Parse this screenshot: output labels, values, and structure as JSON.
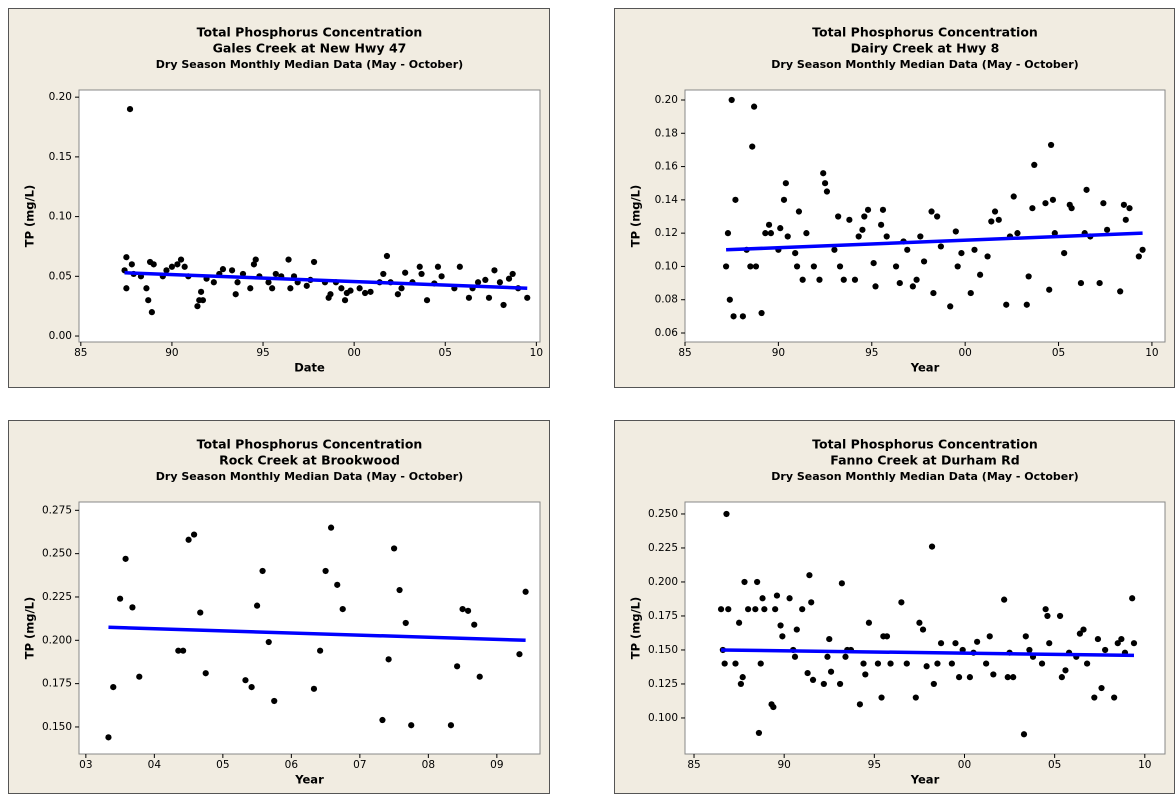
{
  "chart_data": [
    {
      "type": "scatter",
      "title": "Total Phosphorus Concentration",
      "subtitle": "Gales Creek at New Hwy 47",
      "caption": "Dry Season Monthly Median Data (May - October)",
      "x_label": "Date",
      "y_label": "TP (mg/L)",
      "xlim": [
        1984.9,
        2010.2
      ],
      "ylim": [
        -0.005,
        0.206
      ],
      "xticks": [
        {
          "value": 1985,
          "label": "85"
        },
        {
          "value": 1990,
          "label": "90"
        },
        {
          "value": 1995,
          "label": "95"
        },
        {
          "value": 2000,
          "label": "00"
        },
        {
          "value": 2005,
          "label": "05"
        },
        {
          "value": 2010,
          "label": "10"
        }
      ],
      "yticks": [
        {
          "value": 0,
          "label": "0.00"
        },
        0.05,
        {
          "value": 0.1,
          "label": "0.10"
        },
        0.15,
        {
          "value": 0.2,
          "label": "0.20"
        }
      ],
      "series": [
        {
          "color": "#000000",
          "x": [
            1987.4,
            1987.5,
            1987.5,
            1987.7,
            1987.8,
            1987.9,
            1988.3,
            1988.6,
            1988.7,
            1988.8,
            1988.9,
            1989.0,
            1989.5,
            1989.7,
            1990.0,
            1990.3,
            1990.5,
            1990.7,
            1990.9,
            1991.4,
            1991.5,
            1991.6,
            1991.7,
            1991.9,
            1992.3,
            1992.6,
            1992.8,
            1993.3,
            1993.5,
            1993.6,
            1993.9,
            1994.3,
            1994.5,
            1994.6,
            1994.8,
            1995.3,
            1995.5,
            1995.7,
            1996.0,
            1996.4,
            1996.5,
            1996.7,
            1996.9,
            1997.4,
            1997.6,
            1997.8,
            1998.4,
            1998.6,
            1998.7,
            1999.0,
            1999.3,
            1999.5,
            1999.6,
            1999.8,
            2000.3,
            2000.6,
            2000.9,
            2001.4,
            2001.6,
            2001.8,
            2002.0,
            2002.4,
            2002.6,
            2002.8,
            2003.2,
            2003.6,
            2003.7,
            2004.0,
            2004.4,
            2004.6,
            2004.8,
            2005.5,
            2005.8,
            2006.3,
            2006.5,
            2006.8,
            2007.2,
            2007.4,
            2007.7,
            2008.0,
            2008.2,
            2008.5,
            2008.7,
            2009.0,
            2009.5
          ],
          "values": [
            0.055,
            0.066,
            0.04,
            0.19,
            0.06,
            0.052,
            0.05,
            0.04,
            0.03,
            0.062,
            0.02,
            0.06,
            0.05,
            0.055,
            0.058,
            0.06,
            0.064,
            0.058,
            0.05,
            0.025,
            0.03,
            0.037,
            0.03,
            0.048,
            0.045,
            0.052,
            0.056,
            0.055,
            0.035,
            0.045,
            0.052,
            0.04,
            0.06,
            0.064,
            0.05,
            0.045,
            0.04,
            0.052,
            0.05,
            0.064,
            0.04,
            0.05,
            0.045,
            0.042,
            0.047,
            0.062,
            0.045,
            0.032,
            0.035,
            0.045,
            0.04,
            0.03,
            0.036,
            0.038,
            0.04,
            0.036,
            0.037,
            0.045,
            0.052,
            0.067,
            0.045,
            0.035,
            0.04,
            0.053,
            0.045,
            0.058,
            0.052,
            0.03,
            0.044,
            0.058,
            0.05,
            0.04,
            0.058,
            0.032,
            0.04,
            0.045,
            0.047,
            0.032,
            0.055,
            0.045,
            0.026,
            0.048,
            0.052,
            0.04,
            0.032
          ]
        }
      ],
      "trend_line": {
        "color": "#0000ff",
        "x": [
          1987.4,
          2009.5
        ],
        "values": [
          0.053,
          0.04
        ]
      }
    },
    {
      "type": "scatter",
      "title": "Total Phosphorus Concentration",
      "subtitle": "Dairy Creek at Hwy 8",
      "caption": "Dry Season Monthly Median Data (May - October)",
      "x_label": "Year",
      "y_label": "TP (mg/L)",
      "xlim": [
        1985,
        2010.7
      ],
      "ylim": [
        0.0546,
        0.206
      ],
      "xticks": [
        {
          "value": 1985,
          "label": "85"
        },
        {
          "value": 1990,
          "label": "90"
        },
        {
          "value": 1995,
          "label": "95"
        },
        {
          "value": 2000,
          "label": "00"
        },
        {
          "value": 2005,
          "label": "05"
        },
        {
          "value": 2010,
          "label": "10"
        }
      ],
      "yticks": [
        0.06,
        0.08,
        {
          "value": 0.1,
          "label": "0.10"
        },
        0.12,
        0.14,
        0.16,
        0.18,
        {
          "value": 0.2,
          "label": "0.20"
        }
      ],
      "series": [
        {
          "color": "#000000",
          "x": [
            1987.2,
            1987.3,
            1987.4,
            1987.5,
            1987.6,
            1987.7,
            1988.1,
            1988.3,
            1988.5,
            1988.6,
            1988.7,
            1988.8,
            1989.1,
            1989.3,
            1989.5,
            1989.6,
            1990.0,
            1990.1,
            1990.3,
            1990.4,
            1990.5,
            1990.9,
            1991.0,
            1991.1,
            1991.3,
            1991.5,
            1991.9,
            1992.2,
            1992.4,
            1992.5,
            1992.6,
            1993.0,
            1993.2,
            1993.3,
            1993.5,
            1993.8,
            1994.1,
            1994.3,
            1994.5,
            1994.6,
            1994.8,
            1995.1,
            1995.2,
            1995.5,
            1995.6,
            1995.8,
            1996.3,
            1996.5,
            1996.7,
            1996.9,
            1997.2,
            1997.4,
            1997.6,
            1997.8,
            1998.2,
            1998.3,
            1998.5,
            1998.7,
            1999.2,
            1999.5,
            1999.6,
            1999.8,
            2000.3,
            2000.5,
            2000.8,
            2001.2,
            2001.4,
            2001.6,
            2001.8,
            2002.2,
            2002.4,
            2002.6,
            2002.8,
            2003.3,
            2003.4,
            2003.6,
            2003.7,
            2004.3,
            2004.5,
            2004.6,
            2004.7,
            2004.8,
            2005.3,
            2005.6,
            2005.7,
            2006.2,
            2006.4,
            2006.5,
            2006.7,
            2007.2,
            2007.4,
            2007.6,
            2008.3,
            2008.5,
            2008.6,
            2008.8,
            2009.3,
            2009.5
          ],
          "values": [
            0.1,
            0.12,
            0.08,
            0.2,
            0.07,
            0.14,
            0.07,
            0.11,
            0.1,
            0.172,
            0.196,
            0.1,
            0.072,
            0.12,
            0.125,
            0.12,
            0.11,
            0.123,
            0.14,
            0.15,
            0.118,
            0.108,
            0.1,
            0.133,
            0.092,
            0.12,
            0.1,
            0.092,
            0.156,
            0.15,
            0.145,
            0.11,
            0.13,
            0.1,
            0.092,
            0.128,
            0.092,
            0.118,
            0.122,
            0.13,
            0.134,
            0.102,
            0.088,
            0.125,
            0.134,
            0.118,
            0.1,
            0.09,
            0.115,
            0.11,
            0.088,
            0.092,
            0.118,
            0.103,
            0.133,
            0.084,
            0.13,
            0.112,
            0.076,
            0.121,
            0.1,
            0.108,
            0.084,
            0.11,
            0.095,
            0.106,
            0.127,
            0.133,
            0.128,
            0.077,
            0.118,
            0.142,
            0.12,
            0.077,
            0.094,
            0.135,
            0.161,
            0.138,
            0.086,
            0.173,
            0.14,
            0.12,
            0.108,
            0.137,
            0.135,
            0.09,
            0.12,
            0.146,
            0.118,
            0.09,
            0.138,
            0.122,
            0.085,
            0.137,
            0.128,
            0.135,
            0.106,
            0.11
          ]
        }
      ],
      "trend_line": {
        "color": "#0000ff",
        "x": [
          1987.2,
          2009.5
        ],
        "values": [
          0.11,
          0.12
        ]
      }
    },
    {
      "type": "scatter",
      "title": "Total Phosphorus Concentration",
      "subtitle": "Rock Creek at Brookwood",
      "caption": "Dry Season Monthly Median Data (May - October)",
      "x_label": "Year",
      "y_label": "TP (mg/L)",
      "xlim": [
        2002.9,
        2009.63
      ],
      "ylim": [
        0.1344,
        0.2798
      ],
      "xticks": [
        {
          "value": 2003,
          "label": "03"
        },
        {
          "value": 2004,
          "label": "04"
        },
        {
          "value": 2005,
          "label": "05"
        },
        {
          "value": 2006,
          "label": "06"
        },
        {
          "value": 2007,
          "label": "07"
        },
        {
          "value": 2008,
          "label": "08"
        },
        {
          "value": 2009,
          "label": "09"
        }
      ],
      "yticks": [
        {
          "value": 0.15,
          "label": "0.150"
        },
        0.175,
        {
          "value": 0.2,
          "label": "0.200"
        },
        0.225,
        {
          "value": 0.25,
          "label": "0.250"
        },
        0.275
      ],
      "series": [
        {
          "color": "#000000",
          "x": [
            2003.33,
            2003.4,
            2003.5,
            2003.58,
            2003.68,
            2003.78,
            2004.35,
            2004.42,
            2004.5,
            2004.58,
            2004.67,
            2004.75,
            2005.33,
            2005.42,
            2005.5,
            2005.58,
            2005.67,
            2005.75,
            2006.33,
            2006.42,
            2006.5,
            2006.58,
            2006.67,
            2006.75,
            2007.33,
            2007.42,
            2007.5,
            2007.58,
            2007.67,
            2007.75,
            2008.33,
            2008.42,
            2008.5,
            2008.58,
            2008.67,
            2008.75,
            2009.33,
            2009.42
          ],
          "values": [
            0.144,
            0.173,
            0.224,
            0.247,
            0.219,
            0.179,
            0.194,
            0.194,
            0.258,
            0.261,
            0.216,
            0.181,
            0.177,
            0.173,
            0.22,
            0.24,
            0.199,
            0.165,
            0.172,
            0.194,
            0.24,
            0.265,
            0.232,
            0.218,
            0.154,
            0.189,
            0.253,
            0.229,
            0.21,
            0.151,
            0.151,
            0.185,
            0.218,
            0.217,
            0.209,
            0.179,
            0.192,
            0.228
          ]
        }
      ],
      "trend_line": {
        "color": "#0000ff",
        "x": [
          2003.33,
          2009.42
        ],
        "values": [
          0.2075,
          0.2
        ]
      }
    },
    {
      "type": "scatter",
      "title": "Total Phosphorus Concentration",
      "subtitle": "Fanno Creek at Durham Rd",
      "caption": "Dry Season Monthly Median Data (May - October)",
      "x_label": "Year",
      "y_label": "TP (mg/L)",
      "xlim": [
        1984.5,
        2011.12
      ],
      "ylim": [
        0.0735,
        0.2588
      ],
      "xticks": [
        {
          "value": 1985,
          "label": "85"
        },
        {
          "value": 1990,
          "label": "90"
        },
        {
          "value": 1995,
          "label": "95"
        },
        {
          "value": 2000,
          "label": "00"
        },
        {
          "value": 2005,
          "label": "05"
        },
        {
          "value": 2010,
          "label": "10"
        }
      ],
      "yticks": [
        {
          "value": 0.1,
          "label": "0.100"
        },
        0.125,
        {
          "value": 0.15,
          "label": "0.150"
        },
        0.175,
        {
          "value": 0.2,
          "label": "0.200"
        },
        0.225,
        {
          "value": 0.25,
          "label": "0.250"
        }
      ],
      "series": [
        {
          "color": "#000000",
          "x": [
            1986.5,
            1986.6,
            1986.7,
            1986.8,
            1986.9,
            1987.3,
            1987.5,
            1987.6,
            1987.7,
            1987.8,
            1988.0,
            1988.4,
            1988.5,
            1988.6,
            1988.7,
            1988.8,
            1988.9,
            1989.3,
            1989.4,
            1989.5,
            1989.6,
            1989.8,
            1989.9,
            1990.3,
            1990.5,
            1990.6,
            1990.7,
            1991.0,
            1991.3,
            1991.4,
            1991.5,
            1991.6,
            1992.2,
            1992.4,
            1992.5,
            1992.6,
            1993.1,
            1993.2,
            1993.4,
            1993.5,
            1993.7,
            1994.2,
            1994.4,
            1994.5,
            1994.7,
            1995.2,
            1995.4,
            1995.5,
            1995.7,
            1995.9,
            1996.5,
            1996.8,
            1997.3,
            1997.5,
            1997.7,
            1997.9,
            1998.2,
            1998.3,
            1998.5,
            1998.7,
            1999.3,
            1999.5,
            1999.7,
            1999.9,
            2000.3,
            2000.5,
            2000.7,
            2001.2,
            2001.4,
            2001.6,
            2002.2,
            2002.4,
            2002.5,
            2002.7,
            2003.3,
            2003.4,
            2003.6,
            2003.8,
            2004.3,
            2004.5,
            2004.6,
            2004.7,
            2005.3,
            2005.4,
            2005.6,
            2005.8,
            2006.2,
            2006.4,
            2006.6,
            2006.8,
            2007.2,
            2007.4,
            2007.6,
            2007.8,
            2008.3,
            2008.5,
            2008.7,
            2008.9,
            2009.3,
            2009.4
          ],
          "values": [
            0.18,
            0.15,
            0.14,
            0.25,
            0.18,
            0.14,
            0.17,
            0.125,
            0.13,
            0.2,
            0.18,
            0.18,
            0.2,
            0.089,
            0.14,
            0.188,
            0.18,
            0.11,
            0.108,
            0.18,
            0.19,
            0.168,
            0.16,
            0.188,
            0.15,
            0.145,
            0.165,
            0.18,
            0.133,
            0.205,
            0.185,
            0.128,
            0.125,
            0.145,
            0.158,
            0.134,
            0.125,
            0.199,
            0.145,
            0.15,
            0.15,
            0.11,
            0.14,
            0.132,
            0.17,
            0.14,
            0.115,
            0.16,
            0.16,
            0.14,
            0.185,
            0.14,
            0.115,
            0.17,
            0.165,
            0.138,
            0.226,
            0.125,
            0.14,
            0.155,
            0.14,
            0.155,
            0.13,
            0.15,
            0.13,
            0.148,
            0.156,
            0.14,
            0.16,
            0.132,
            0.187,
            0.13,
            0.148,
            0.13,
            0.088,
            0.16,
            0.15,
            0.145,
            0.14,
            0.18,
            0.175,
            0.155,
            0.175,
            0.13,
            0.135,
            0.148,
            0.145,
            0.162,
            0.165,
            0.14,
            0.115,
            0.158,
            0.122,
            0.15,
            0.115,
            0.155,
            0.158,
            0.148,
            0.188,
            0.155
          ]
        }
      ],
      "trend_line": {
        "color": "#0000ff",
        "x": [
          1986.5,
          2009.4
        ],
        "values": [
          0.15,
          0.146
        ]
      }
    }
  ]
}
